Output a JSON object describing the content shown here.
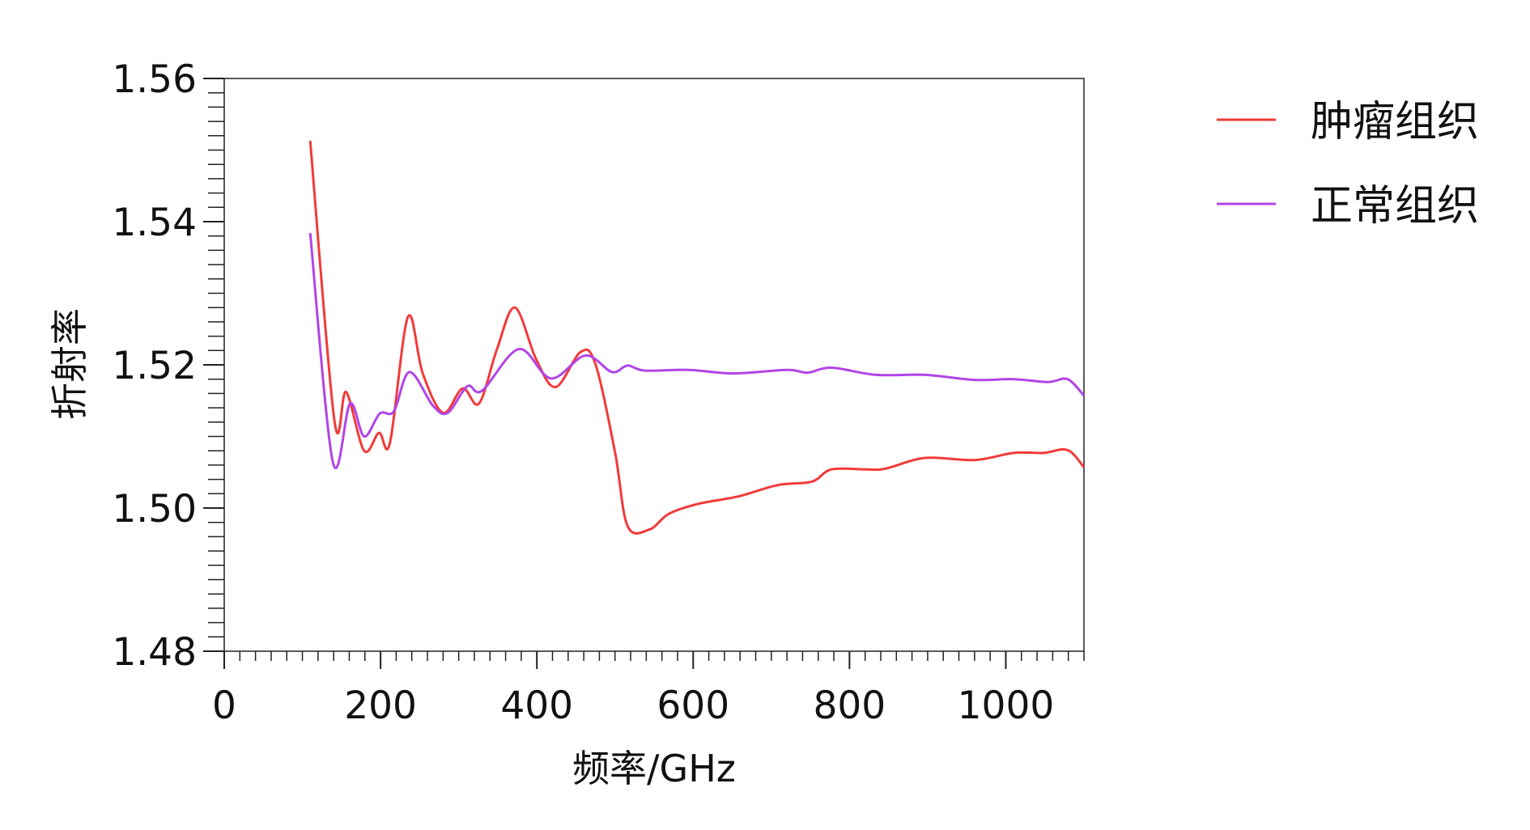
{
  "chart_data": {
    "type": "line",
    "title": "",
    "xlabel": "频率/GHz",
    "ylabel": "折射率",
    "xlim": [
      0,
      1100
    ],
    "ylim": [
      1.48,
      1.56
    ],
    "x_ticks": [
      0,
      200,
      400,
      600,
      800,
      1000
    ],
    "x_tick_labels": [
      "0",
      "200",
      "400",
      "600",
      "800",
      "1000"
    ],
    "y_ticks": [
      1.48,
      1.5,
      1.52,
      1.54,
      1.56
    ],
    "y_tick_labels": [
      "1.48",
      "1.50",
      "1.52",
      "1.54",
      "1.56"
    ],
    "grid": false,
    "legend_position": "right-top-outside",
    "series": [
      {
        "name": "肿瘤组织",
        "color": "#f23a3a",
        "x": [
          110,
          141,
          156,
          179,
          198,
          212,
          235,
          254,
          280,
          305,
          326,
          349,
          372,
          399,
          424,
          456,
          475,
          500,
          516,
          544,
          569,
          607,
          657,
          708,
          752,
          777,
          821,
          846,
          897,
          960,
          1010,
          1048,
          1079,
          1100
        ],
        "y": [
          1.5513,
          1.5122,
          1.5162,
          1.508,
          1.5105,
          1.5091,
          1.5267,
          1.5188,
          1.5133,
          1.5167,
          1.5146,
          1.5222,
          1.528,
          1.5208,
          1.5169,
          1.5218,
          1.5201,
          1.5078,
          1.4975,
          1.497,
          1.4992,
          1.5006,
          1.5016,
          1.5032,
          1.5037,
          1.5054,
          1.5054,
          1.5055,
          1.507,
          1.5067,
          1.5077,
          1.5077,
          1.5081,
          1.5057
        ]
      },
      {
        "name": "正常组织",
        "color": "#b244e6",
        "x": [
          110,
          139,
          161,
          179,
          199,
          217,
          237,
          267,
          286,
          311,
          330,
          377,
          418,
          462,
          496,
          516,
          538,
          594,
          651,
          720,
          746,
          777,
          834,
          897,
          960,
          1010,
          1054,
          1079,
          1100
        ],
        "y": [
          1.5384,
          1.5064,
          1.5146,
          1.51,
          1.5132,
          1.5135,
          1.519,
          1.5143,
          1.5133,
          1.517,
          1.5164,
          1.5222,
          1.5181,
          1.5213,
          1.519,
          1.5199,
          1.5192,
          1.5193,
          1.5188,
          1.5193,
          1.5189,
          1.5196,
          1.5186,
          1.5186,
          1.5179,
          1.518,
          1.5176,
          1.518,
          1.5157
        ]
      }
    ]
  }
}
